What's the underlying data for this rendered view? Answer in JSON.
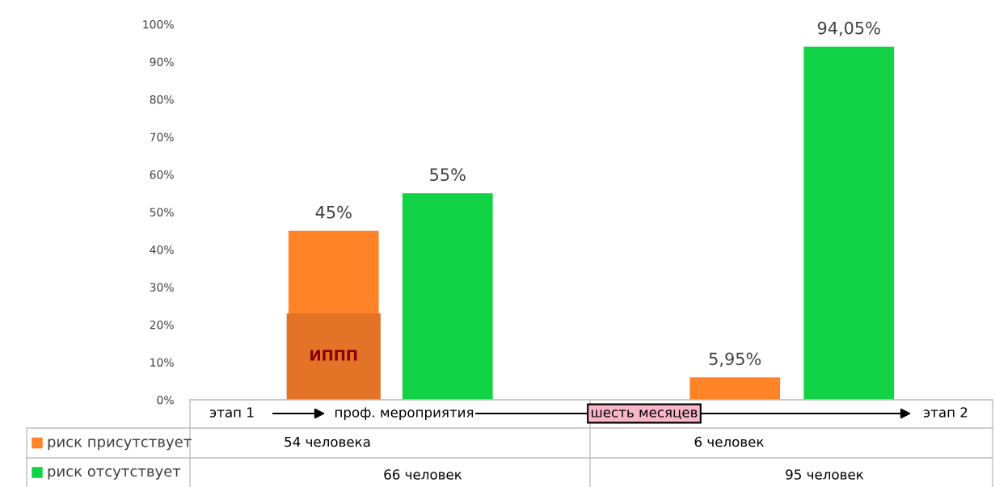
{
  "chart_data": {
    "type": "bar",
    "categories": [
      null,
      null
    ],
    "series": [
      {
        "name": "риск присутствует",
        "color": "#fe8427",
        "values": [
          45,
          5.95
        ],
        "value_labels": [
          "45%",
          "5,95%"
        ]
      },
      {
        "name": "риск отсутствует",
        "color": "#12d245",
        "values": [
          55,
          94.05
        ],
        "value_labels": [
          "55%",
          "94,05%"
        ]
      },
      {
        "color": "#e37327",
        "values": [
          23,
          null
        ]
      }
    ],
    "ylim": [
      0,
      100
    ],
    "yticks": [
      {
        "value": 0,
        "label": "0%"
      },
      {
        "value": 10,
        "label": "10%"
      },
      {
        "value": 20,
        "label": "20%"
      },
      {
        "value": 30,
        "label": "30%"
      },
      {
        "value": 40,
        "label": "40%"
      },
      {
        "value": 50,
        "label": "50%"
      },
      {
        "value": 60,
        "label": "60%"
      },
      {
        "value": 70,
        "label": "70%"
      },
      {
        "value": 80,
        "label": "80%"
      },
      {
        "value": 90,
        "label": "90%"
      },
      {
        "value": 100,
        "label": "100%"
      }
    ],
    "annotations": [
      "ИППП",
      "этап 1",
      "проф. мероприятия",
      "шесть месяцев",
      "этап 2",
      "54 человека",
      "6 человек",
      "66 человек",
      "95 человек"
    ],
    "legend": "bottom",
    "grid": false
  }
}
